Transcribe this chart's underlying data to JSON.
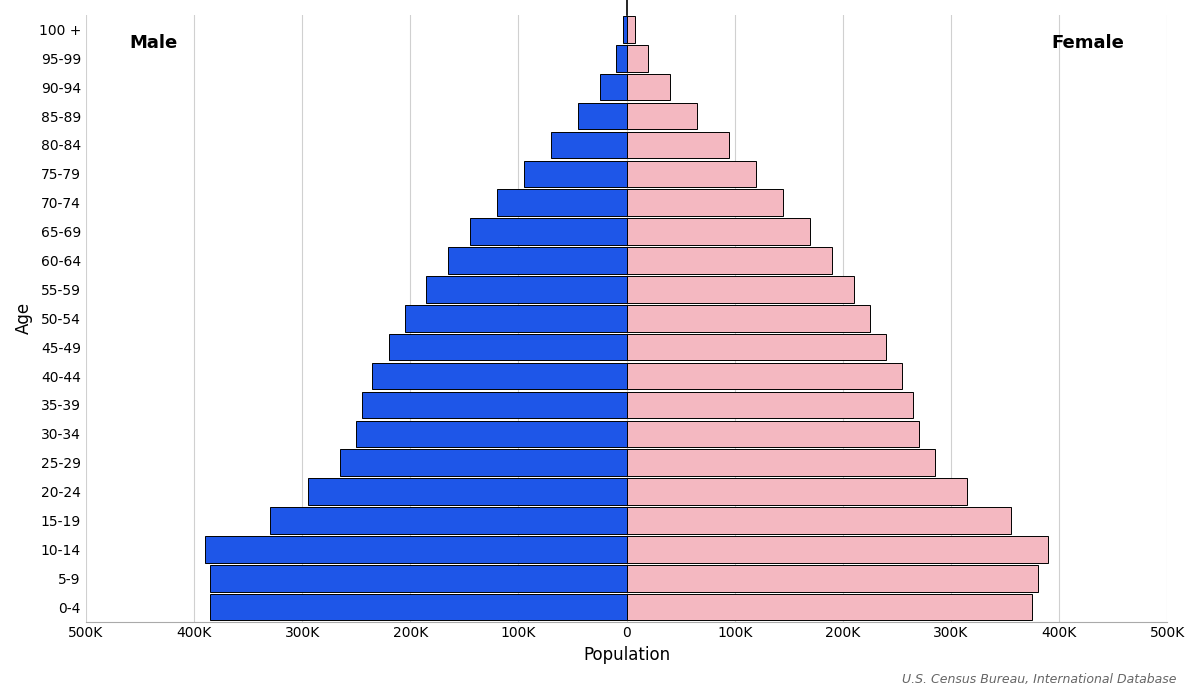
{
  "xlabel": "Population",
  "ylabel": "Age",
  "source": "U.S. Census Bureau, International Database",
  "age_groups": [
    "0-4",
    "5-9",
    "10-14",
    "15-19",
    "20-24",
    "25-29",
    "30-34",
    "35-39",
    "40-44",
    "45-49",
    "50-54",
    "55-59",
    "60-64",
    "65-69",
    "70-74",
    "75-79",
    "80-84",
    "85-89",
    "90-94",
    "95-99",
    "100 +"
  ],
  "male": [
    385000,
    385000,
    390000,
    330000,
    295000,
    265000,
    250000,
    245000,
    235000,
    220000,
    205000,
    185000,
    165000,
    145000,
    120000,
    95000,
    70000,
    45000,
    25000,
    10000,
    3000
  ],
  "female": [
    375000,
    380000,
    390000,
    355000,
    315000,
    285000,
    270000,
    265000,
    255000,
    240000,
    225000,
    210000,
    190000,
    170000,
    145000,
    120000,
    95000,
    65000,
    40000,
    20000,
    8000
  ],
  "male_color": "#1e56e8",
  "female_color": "#f4b8c1",
  "male_label": "Male",
  "female_label": "Female",
  "xlim": 500000,
  "xticks": [
    -500000,
    -400000,
    -300000,
    -200000,
    -100000,
    0,
    100000,
    200000,
    300000,
    400000,
    500000
  ],
  "xtick_labels": [
    "500K",
    "400K",
    "300K",
    "200K",
    "100K",
    "0",
    "100K",
    "200K",
    "300K",
    "400K",
    "500K"
  ],
  "background_color": "#ffffff",
  "grid_color": "#d0d0d0",
  "bar_edge_color": "#000000",
  "bar_height": 0.92
}
